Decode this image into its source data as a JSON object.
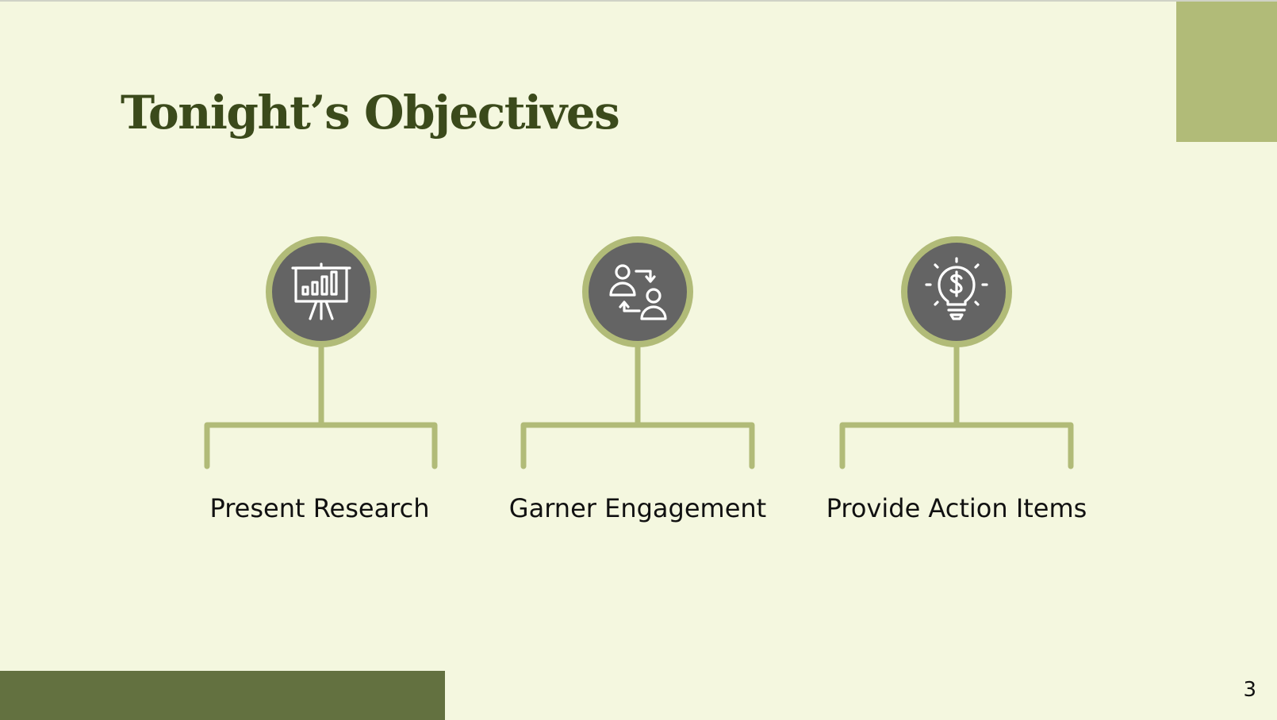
{
  "slide": {
    "title": "Tonight’s Objectives",
    "page_number": "3"
  },
  "objectives": [
    {
      "label": "Present Research",
      "icon": "presentation-chart-icon"
    },
    {
      "label": "Garner Engagement",
      "icon": "people-exchange-icon"
    },
    {
      "label": "Provide Action Items",
      "icon": "lightbulb-dollar-icon"
    }
  ],
  "colors": {
    "background": "#f4f7df",
    "accent_light": "#b1bb78",
    "accent_dark": "#637140",
    "title": "#3b4a1b",
    "icon_fill": "#646464"
  }
}
